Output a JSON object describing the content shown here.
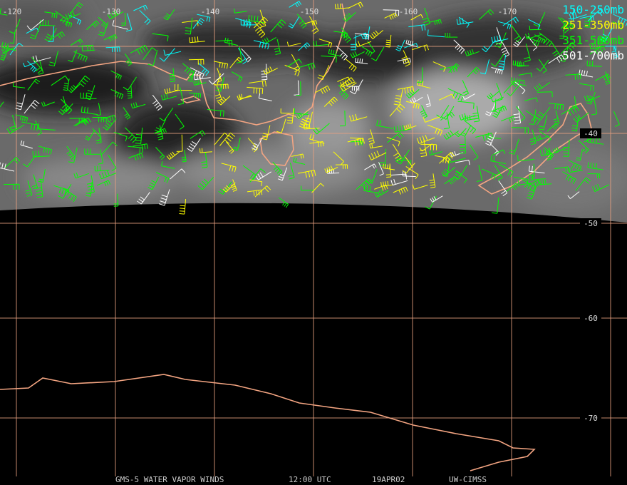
{
  "map": {
    "longitudes": [
      -120,
      -130,
      -140,
      -150,
      -160,
      -170
    ],
    "latitudes": [
      -40,
      -50,
      -60,
      -70
    ],
    "legend": [
      {
        "label": "150-250mb",
        "color": "#00ffff"
      },
      {
        "label": "251-350mb",
        "color": "#ffff00"
      },
      {
        "label": "351-500mb",
        "color": "#00ff00"
      },
      {
        "label": "501-700mb",
        "color": "#ffffff"
      }
    ],
    "footer": [
      "GMS-5 WATER VAPOR WINDS",
      "12:00 UTC",
      "19APR02",
      "UW-CIMSS"
    ]
  }
}
